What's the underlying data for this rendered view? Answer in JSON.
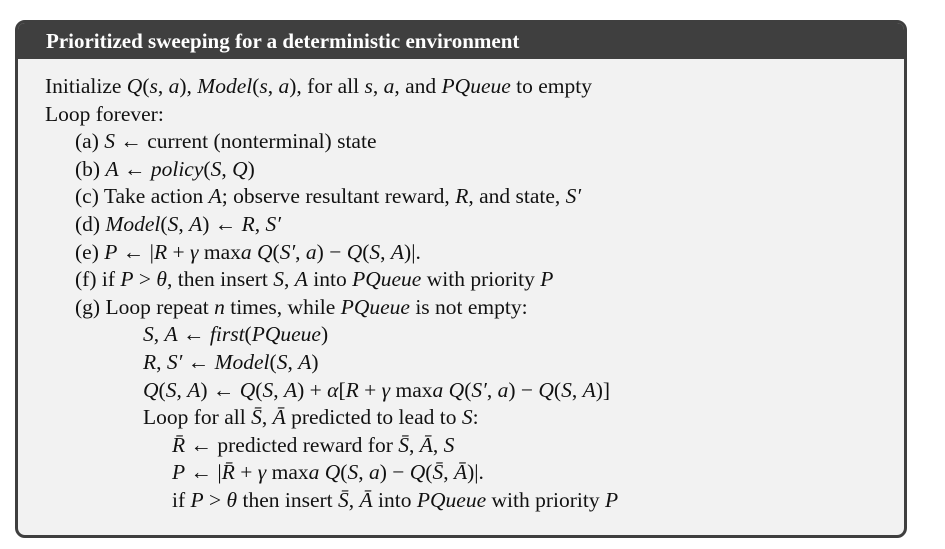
{
  "title": "Prioritized sweeping for a deterministic environment",
  "lines": [
    {
      "indent": 0,
      "segs": [
        [
          "Initialize ",
          0
        ],
        [
          "Q",
          1
        ],
        [
          "(",
          0
        ],
        [
          "s",
          1
        ],
        [
          ", ",
          0
        ],
        [
          "a",
          1
        ],
        [
          "), ",
          0
        ],
        [
          "Model",
          1
        ],
        [
          "(",
          0
        ],
        [
          "s",
          1
        ],
        [
          ", ",
          0
        ],
        [
          "a",
          1
        ],
        [
          "), for all ",
          0
        ],
        [
          "s",
          1
        ],
        [
          ", ",
          0
        ],
        [
          "a",
          1
        ],
        [
          ", and ",
          0
        ],
        [
          "PQueue",
          1
        ],
        [
          " to empty",
          0
        ]
      ]
    },
    {
      "indent": 0,
      "segs": [
        [
          "Loop forever:",
          0
        ]
      ]
    },
    {
      "indent": 1,
      "segs": [
        [
          "(a) ",
          0
        ],
        [
          "S",
          1
        ],
        [
          " ← current (nonterminal) state",
          0
        ]
      ]
    },
    {
      "indent": 1,
      "segs": [
        [
          "(b) ",
          0
        ],
        [
          "A",
          1
        ],
        [
          " ← ",
          0
        ],
        [
          "policy",
          1
        ],
        [
          "(",
          0
        ],
        [
          "S",
          1
        ],
        [
          ", ",
          0
        ],
        [
          "Q",
          1
        ],
        [
          ")",
          0
        ]
      ]
    },
    {
      "indent": 1,
      "segs": [
        [
          "(c) Take action ",
          0
        ],
        [
          "A",
          1
        ],
        [
          "; observe resultant reward, ",
          0
        ],
        [
          "R",
          1
        ],
        [
          ", and state, ",
          0
        ],
        [
          "S′",
          1
        ]
      ]
    },
    {
      "indent": 1,
      "segs": [
        [
          "(d) ",
          0
        ],
        [
          "Model",
          1
        ],
        [
          "(",
          0
        ],
        [
          "S",
          1
        ],
        [
          ", ",
          0
        ],
        [
          "A",
          1
        ],
        [
          ") ← ",
          0
        ],
        [
          "R",
          1
        ],
        [
          ", ",
          0
        ],
        [
          "S′",
          1
        ]
      ]
    },
    {
      "indent": 1,
      "segs": [
        [
          "(e) ",
          0
        ],
        [
          "P",
          1
        ],
        [
          " ← |",
          0
        ],
        [
          "R",
          1
        ],
        [
          " + ",
          0
        ],
        [
          "γ",
          1
        ],
        [
          " max",
          0
        ],
        [
          "a",
          1
        ],
        [
          " ",
          0
        ],
        [
          "Q",
          1
        ],
        [
          "(",
          0
        ],
        [
          "S′",
          1
        ],
        [
          ", ",
          0
        ],
        [
          "a",
          1
        ],
        [
          ") − ",
          0
        ],
        [
          "Q",
          1
        ],
        [
          "(",
          0
        ],
        [
          "S",
          1
        ],
        [
          ", ",
          0
        ],
        [
          "A",
          1
        ],
        [
          ")|.",
          0
        ]
      ]
    },
    {
      "indent": 1,
      "segs": [
        [
          "(f) if ",
          0
        ],
        [
          "P",
          1
        ],
        [
          " > ",
          0
        ],
        [
          "θ",
          1
        ],
        [
          ", then insert ",
          0
        ],
        [
          "S",
          1
        ],
        [
          ", ",
          0
        ],
        [
          "A",
          1
        ],
        [
          " into ",
          0
        ],
        [
          "PQueue",
          1
        ],
        [
          " with priority ",
          0
        ],
        [
          "P",
          1
        ]
      ]
    },
    {
      "indent": 1,
      "segs": [
        [
          "(g) Loop repeat ",
          0
        ],
        [
          "n",
          1
        ],
        [
          " times, while ",
          0
        ],
        [
          "PQueue",
          1
        ],
        [
          " is not empty:",
          0
        ]
      ]
    },
    {
      "indent": 2,
      "segs": [
        [
          "S",
          1
        ],
        [
          ", ",
          0
        ],
        [
          "A",
          1
        ],
        [
          " ← ",
          0
        ],
        [
          "first",
          1
        ],
        [
          "(",
          0
        ],
        [
          "PQueue",
          1
        ],
        [
          ")",
          0
        ]
      ]
    },
    {
      "indent": 2,
      "segs": [
        [
          "R",
          1
        ],
        [
          ", ",
          0
        ],
        [
          "S′",
          1
        ],
        [
          " ← ",
          0
        ],
        [
          "Model",
          1
        ],
        [
          "(",
          0
        ],
        [
          "S",
          1
        ],
        [
          ", ",
          0
        ],
        [
          "A",
          1
        ],
        [
          ")",
          0
        ]
      ]
    },
    {
      "indent": 2,
      "segs": [
        [
          "Q",
          1
        ],
        [
          "(",
          0
        ],
        [
          "S",
          1
        ],
        [
          ", ",
          0
        ],
        [
          "A",
          1
        ],
        [
          ") ← ",
          0
        ],
        [
          "Q",
          1
        ],
        [
          "(",
          0
        ],
        [
          "S",
          1
        ],
        [
          ", ",
          0
        ],
        [
          "A",
          1
        ],
        [
          ") + ",
          0
        ],
        [
          "α",
          1
        ],
        [
          "[",
          0
        ],
        [
          "R",
          1
        ],
        [
          " + ",
          0
        ],
        [
          "γ",
          1
        ],
        [
          " max",
          0
        ],
        [
          "a",
          1
        ],
        [
          " ",
          0
        ],
        [
          "Q",
          1
        ],
        [
          "(",
          0
        ],
        [
          "S′",
          1
        ],
        [
          ", ",
          0
        ],
        [
          "a",
          1
        ],
        [
          ") − ",
          0
        ],
        [
          "Q",
          1
        ],
        [
          "(",
          0
        ],
        [
          "S",
          1
        ],
        [
          ", ",
          0
        ],
        [
          "A",
          1
        ],
        [
          ")]",
          0
        ]
      ]
    },
    {
      "indent": 2,
      "segs": [
        [
          "Loop for all ",
          0
        ],
        [
          "S̄",
          1
        ],
        [
          ", ",
          0
        ],
        [
          "Ā",
          1
        ],
        [
          " predicted to lead to ",
          0
        ],
        [
          "S",
          1
        ],
        [
          ":",
          0
        ]
      ]
    },
    {
      "indent": 3,
      "segs": [
        [
          "R̄",
          1
        ],
        [
          " ← predicted reward for ",
          0
        ],
        [
          "S̄",
          1
        ],
        [
          ", ",
          0
        ],
        [
          "Ā",
          1
        ],
        [
          ", ",
          0
        ],
        [
          "S",
          1
        ]
      ]
    },
    {
      "indent": 3,
      "segs": [
        [
          "P",
          1
        ],
        [
          " ← |",
          0
        ],
        [
          "R̄",
          1
        ],
        [
          " + ",
          0
        ],
        [
          "γ",
          1
        ],
        [
          " max",
          0
        ],
        [
          "a",
          1
        ],
        [
          " ",
          0
        ],
        [
          "Q",
          1
        ],
        [
          "(",
          0
        ],
        [
          "S",
          1
        ],
        [
          ", ",
          0
        ],
        [
          "a",
          1
        ],
        [
          ") − ",
          0
        ],
        [
          "Q",
          1
        ],
        [
          "(",
          0
        ],
        [
          "S̄",
          1
        ],
        [
          ", ",
          0
        ],
        [
          "Ā",
          1
        ],
        [
          ")|.",
          0
        ]
      ]
    },
    {
      "indent": 3,
      "segs": [
        [
          "if ",
          0
        ],
        [
          "P",
          1
        ],
        [
          " > ",
          0
        ],
        [
          "θ",
          1
        ],
        [
          " then insert ",
          0
        ],
        [
          "S̄",
          1
        ],
        [
          ", ",
          0
        ],
        [
          "Ā",
          1
        ],
        [
          " into ",
          0
        ],
        [
          "PQueue",
          1
        ],
        [
          " with priority ",
          0
        ],
        [
          "P",
          1
        ]
      ]
    }
  ]
}
